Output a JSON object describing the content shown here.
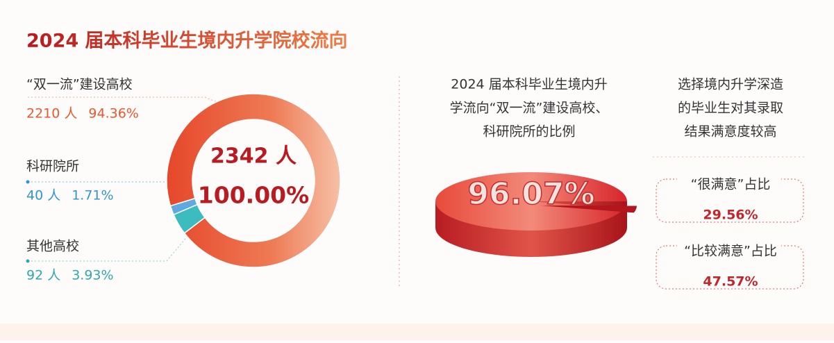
{
  "title": "2024 届本科毕业生境内升学院校流向",
  "donut": {
    "center_count": "2342 人",
    "center_percent": "100.00%",
    "segments": [
      {
        "label": "“双一流”建设高校",
        "count_label": "2210 人",
        "value": 94.36,
        "value_label": "94.36%",
        "color": "#e9542e"
      },
      {
        "label": "科研院所",
        "count_label": "40 人",
        "value": 1.71,
        "value_label": "1.71%",
        "color": "#5fa8e0"
      },
      {
        "label": "其他高校",
        "count_label": "92 人",
        "value": 3.93,
        "value_label": "3.93%",
        "color": "#3dbcc0"
      }
    ]
  },
  "pie3d": {
    "caption": [
      "2024 届本科毕业生境内升",
      "学流向“双一流”建设高校、",
      "科研院所的比例"
    ],
    "value": 96.07,
    "value_label": "96.07%"
  },
  "satisfaction": {
    "caption": [
      "选择境内升学深造",
      "的毕业生对其录取",
      "结果满意度较高"
    ],
    "items": [
      {
        "label": "“很满意”占比",
        "value_label": "29.56%"
      },
      {
        "label": "“比较满意”占比",
        "value_label": "47.57%"
      }
    ]
  }
}
